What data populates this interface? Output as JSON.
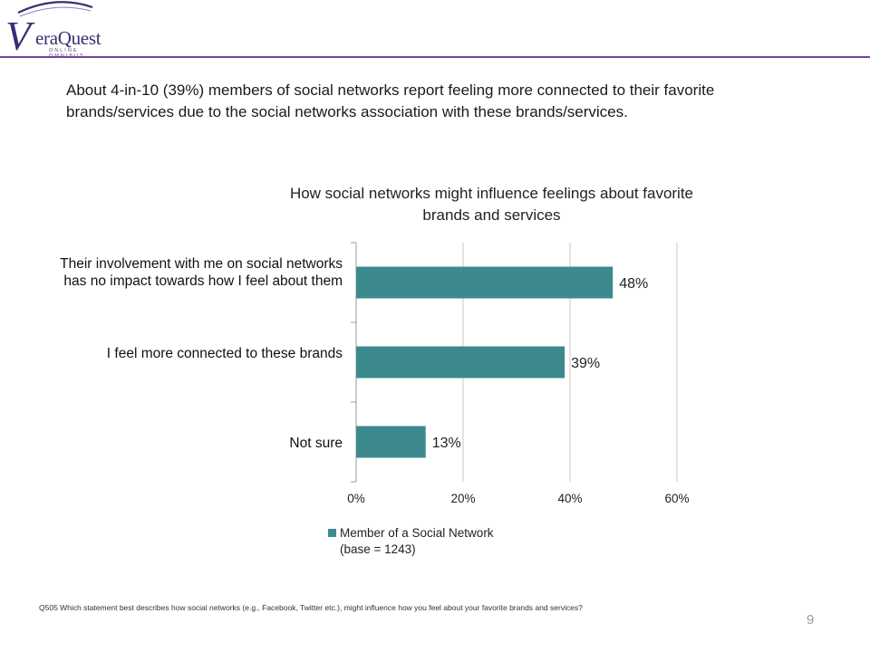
{
  "brand": {
    "logo_initial": "V",
    "logo_text": "eraQuest",
    "logo_subtitle": "ONLINE OMNIBUS",
    "accent_color": "#7d3f9b"
  },
  "headline": "About 4-in-10 (39%) members of social networks report feeling more connected to their favorite brands/services due to the social networks association with these brands/services.",
  "footnote": "Q505 Which statement best describes how social networks (e.g., Facebook, Twitter etc.), might influence how you feel about your favorite brands and services?",
  "page_number": "9",
  "chart_data": {
    "type": "bar",
    "orientation": "horizontal",
    "title": "How social networks  might influence feelings about  favorite brands and services",
    "categories": [
      "Their involvement with me on social networks has no impact towards how I feel about them",
      "I feel more connected to these brands",
      "Not sure"
    ],
    "series": [
      {
        "name": "Member of a Social Network",
        "legend_subtitle": "(base = 1243)",
        "values": [
          48,
          39,
          13
        ],
        "value_labels": [
          "48%",
          "39%",
          "13%"
        ],
        "color": "#3c8a8e"
      }
    ],
    "xlim": [
      0,
      60
    ],
    "x_ticks": [
      "0%",
      "20%",
      "40%",
      "60%"
    ],
    "grid": true,
    "legend_position": "bottom"
  }
}
